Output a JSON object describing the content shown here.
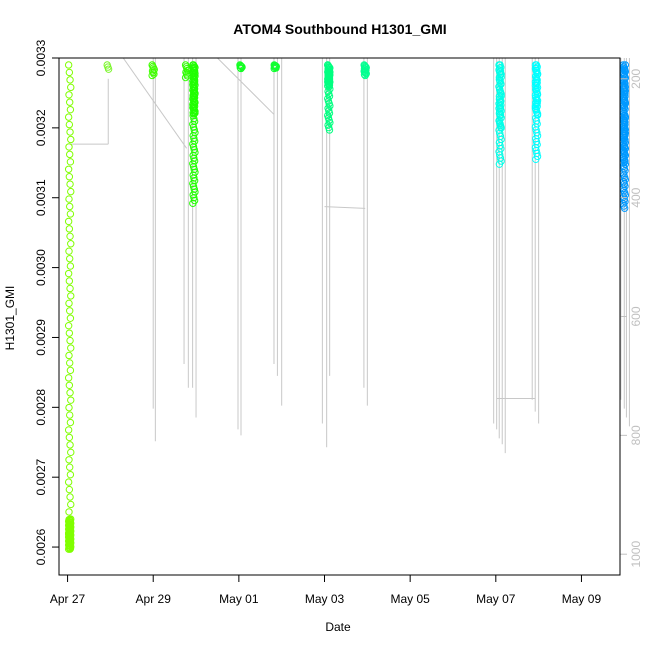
{
  "chart_data": {
    "type": "scatter",
    "title": "ATOM4 Southbound H1301_GMI",
    "xlabel": "Date",
    "ylabel": "H1301_GMI",
    "y2label": "",
    "xlim_days": [
      -0.2,
      12.9
    ],
    "x_origin_label": "Apr 27",
    "ylim": [
      0.00256,
      0.0033
    ],
    "y2lim": [
      1035,
      165
    ],
    "x_ticks": [
      {
        "day": 0,
        "label": "Apr 27"
      },
      {
        "day": 2,
        "label": "Apr 29"
      },
      {
        "day": 4,
        "label": "May 01"
      },
      {
        "day": 6,
        "label": "May 03"
      },
      {
        "day": 8,
        "label": "May 05"
      },
      {
        "day": 10,
        "label": "May 07"
      },
      {
        "day": 12,
        "label": "May 09"
      }
    ],
    "y_ticks": [
      {
        "value": 0.0026,
        "label": "0.0026"
      },
      {
        "value": 0.0027,
        "label": "0.0027"
      },
      {
        "value": 0.0028,
        "label": "0.0028"
      },
      {
        "value": 0.0029,
        "label": "0.0029"
      },
      {
        "value": 0.003,
        "label": "0.0030"
      },
      {
        "value": 0.0031,
        "label": "0.0031"
      },
      {
        "value": 0.0032,
        "label": "0.0032"
      },
      {
        "value": 0.0033,
        "label": "0.0033"
      }
    ],
    "y2_ticks": [
      {
        "value": 200,
        "label": "200"
      },
      {
        "value": 400,
        "label": "400"
      },
      {
        "value": 600,
        "label": "600"
      },
      {
        "value": 800,
        "label": "800"
      },
      {
        "value": 1000,
        "label": "1000"
      }
    ],
    "series": [
      {
        "day": 0.05,
        "color": "#80ff00",
        "ymin": 0.002597,
        "ymax": 0.00329,
        "dense_min": 0.002597,
        "dense_top": 0.00264,
        "n": 120
      },
      {
        "day": 0.95,
        "color": "#7cf52d",
        "ymin": 0.003284,
        "ymax": 0.00329,
        "n": 6
      },
      {
        "day": 2.0,
        "color": "#40ff00",
        "ymin": 0.003275,
        "ymax": 0.00329,
        "n": 14
      },
      {
        "day": 2.78,
        "color": "#30ff00",
        "ymin": 0.003272,
        "ymax": 0.00329,
        "n": 14
      },
      {
        "day": 2.95,
        "color": "#20ff00",
        "ymin": 0.003092,
        "ymax": 0.00329,
        "dense_min": 0.00322,
        "dense_top": 0.00329,
        "n": 90
      },
      {
        "day": 4.05,
        "color": "#10ff20",
        "ymin": 0.003285,
        "ymax": 0.00329,
        "n": 10
      },
      {
        "day": 4.85,
        "color": "#10ff30",
        "ymin": 0.003285,
        "ymax": 0.00329,
        "n": 14
      },
      {
        "day": 6.1,
        "color": "#00ff80",
        "ymin": 0.003197,
        "ymax": 0.00329,
        "dense_min": 0.00326,
        "dense_top": 0.00329,
        "n": 50
      },
      {
        "day": 6.95,
        "color": "#00ff90",
        "ymin": 0.003275,
        "ymax": 0.00329,
        "n": 24
      },
      {
        "day": 10.1,
        "color": "#00ffe8",
        "ymin": 0.003148,
        "ymax": 0.00329,
        "dense_min": 0.0032,
        "dense_top": 0.00329,
        "n": 60
      },
      {
        "day": 10.95,
        "color": "#00ffff",
        "ymin": 0.003155,
        "ymax": 0.00329,
        "dense_min": 0.00322,
        "dense_top": 0.00329,
        "n": 60
      },
      {
        "day": 13.0,
        "color": "#0099ff",
        "ymin": 0.003085,
        "ymax": 0.00329,
        "dense_min": 0.00315,
        "dense_top": 0.00329,
        "n": 120
      }
    ],
    "pressure_drops": [
      {
        "day": 2.0,
        "p": 755
      },
      {
        "day": 2.05,
        "p": 810
      },
      {
        "day": 2.72,
        "p": 680
      },
      {
        "day": 2.82,
        "p": 720
      },
      {
        "day": 2.92,
        "p": 720
      },
      {
        "day": 3.0,
        "p": 770
      },
      {
        "day": 3.98,
        "p": 790
      },
      {
        "day": 4.05,
        "p": 800
      },
      {
        "day": 4.82,
        "p": 680
      },
      {
        "day": 4.9,
        "p": 700
      },
      {
        "day": 5.0,
        "p": 750
      },
      {
        "day": 5.95,
        "p": 780
      },
      {
        "day": 6.05,
        "p": 820
      },
      {
        "day": 6.12,
        "p": 700
      },
      {
        "day": 6.92,
        "p": 720
      },
      {
        "day": 7.0,
        "p": 750
      },
      {
        "day": 9.95,
        "p": 780
      },
      {
        "day": 10.02,
        "p": 790
      },
      {
        "day": 10.08,
        "p": 805
      },
      {
        "day": 10.15,
        "p": 815
      },
      {
        "day": 10.22,
        "p": 830
      },
      {
        "day": 10.85,
        "p": 740
      },
      {
        "day": 10.92,
        "p": 760
      },
      {
        "day": 11.0,
        "p": 780
      },
      {
        "day": 12.92,
        "p": 740
      },
      {
        "day": 13.0,
        "p": 755
      },
      {
        "day": 13.05,
        "p": 770
      },
      {
        "day": 13.12,
        "p": 785
      }
    ],
    "transect_lines": [
      {
        "from": [
          0.05,
          310
        ],
        "to": [
          0.95,
          310
        ]
      },
      {
        "from": [
          0.95,
          310
        ],
        "to": [
          0.95,
          200
        ]
      },
      {
        "from": [
          1.3,
          165
        ],
        "to": [
          2.78,
          317
        ]
      },
      {
        "from": [
          3.5,
          165
        ],
        "to": [
          4.82,
          260
        ]
      },
      {
        "from": [
          6.0,
          415
        ],
        "to": [
          6.95,
          418
        ]
      },
      {
        "from": [
          10.02,
          738
        ],
        "to": [
          10.92,
          738
        ]
      }
    ]
  }
}
